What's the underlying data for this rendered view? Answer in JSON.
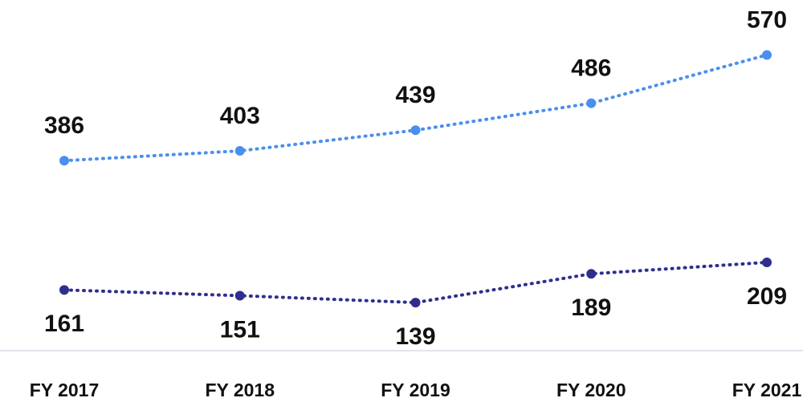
{
  "chart_data": {
    "type": "line",
    "categories": [
      "FY 2017",
      "FY 2018",
      "FY 2019",
      "FY 2020",
      "FY 2021"
    ],
    "series": [
      {
        "color": "#4a8fef",
        "values": [
          386,
          403,
          439,
          486,
          570
        ]
      },
      {
        "color": "#2e2e8f",
        "values": [
          161,
          151,
          139,
          189,
          209
        ]
      }
    ],
    "ylim": [
      100,
      600
    ]
  }
}
